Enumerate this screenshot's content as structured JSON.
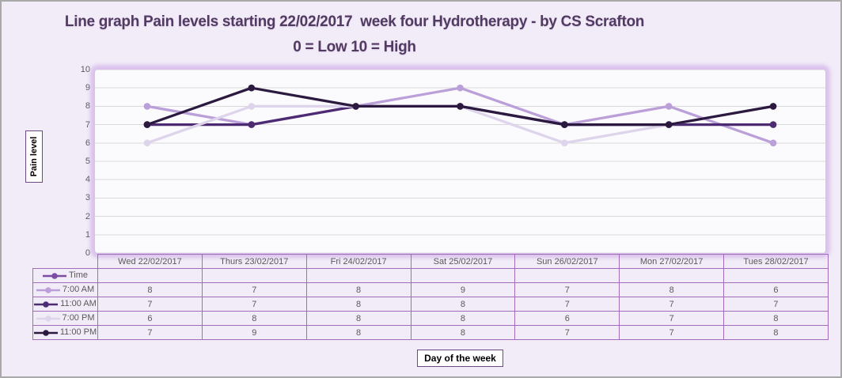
{
  "window": {
    "background": "#f2ecf8",
    "frame_border": "#a9a9a9"
  },
  "title": {
    "line1": "Line graph Pain levels starting 22/02/2017  week four Hydrotherapy - by CS Scrafton",
    "line2": "0 = Low 10 = High",
    "color": "#523a63"
  },
  "chart_data": {
    "type": "line",
    "title": "Line graph Pain levels starting 22/02/2017 week four Hydrotherapy - by CS Scrafton",
    "subtitle": "0 = Low 10 = High",
    "xlabel": "Day of the week",
    "ylabel": "Pain level",
    "ylim": [
      0,
      10
    ],
    "yticks": [
      0,
      1,
      2,
      3,
      4,
      5,
      6,
      7,
      8,
      9,
      10
    ],
    "grid": true,
    "legend_position": "data-table-left",
    "categories": [
      "Wed 22/02/2017",
      "Thurs 23/02/2017",
      "Fri 24/02/2017",
      "Sat 25/02/2017",
      "Sun 26/02/2017",
      "Mon 27/02/2017",
      "Tues 28/02/2017"
    ],
    "series": [
      {
        "name": "Time",
        "color": "#7c4ea3",
        "values": []
      },
      {
        "name": "7:00 AM",
        "color": "#bb9fd8",
        "values": [
          8,
          7,
          8,
          9,
          7,
          8,
          6
        ]
      },
      {
        "name": "11:00 AM",
        "color": "#4d2b73",
        "values": [
          7,
          7,
          8,
          8,
          7,
          7,
          7
        ]
      },
      {
        "name": "7:00 PM",
        "color": "#ded4eb",
        "values": [
          6,
          8,
          8,
          8,
          6,
          7,
          8
        ]
      },
      {
        "name": "11:00 PM",
        "color": "#2b193f",
        "values": [
          7,
          9,
          8,
          8,
          7,
          7,
          8
        ]
      }
    ],
    "colors": {
      "plot_background": "#fbfafd",
      "plot_glow": "#c7a0e4",
      "gridline": "#d9d9d9",
      "table_border": "#a16cba",
      "tick_text": "#595959"
    }
  }
}
